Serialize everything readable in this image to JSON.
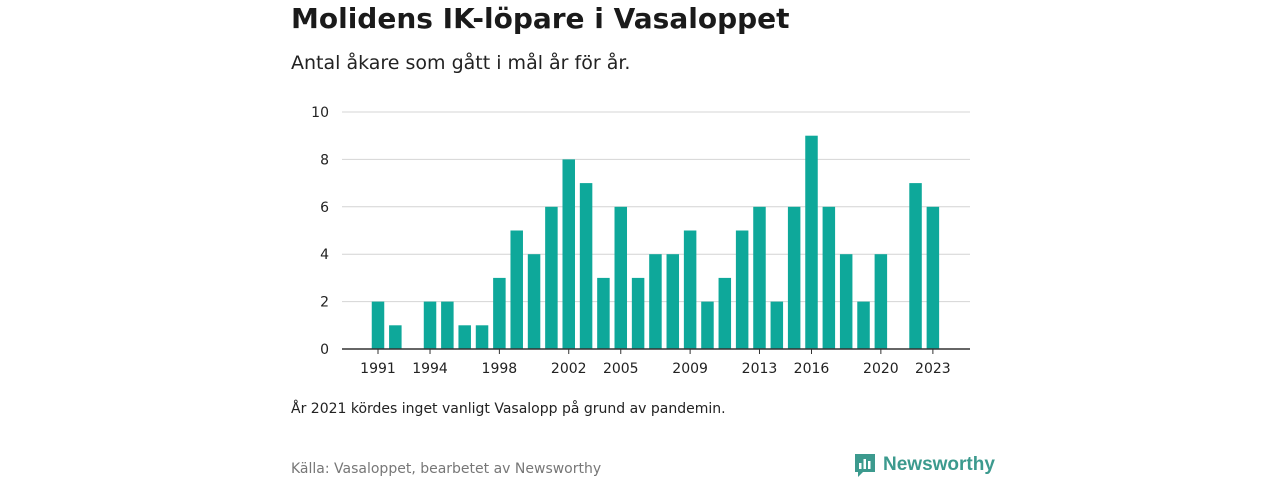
{
  "colors": {
    "bar": "#0ea89a",
    "grid": "#d4d4d4",
    "axis": "#333333",
    "brand": "#3c9a8e"
  },
  "chart_data": {
    "type": "bar",
    "title": "Molidens IK-löpare i Vasaloppet",
    "subtitle": "Antal åkare som gått i mål år för år.",
    "xlabel": "",
    "ylabel": "",
    "ylim": [
      0,
      10
    ],
    "y_ticks": [
      0,
      2,
      4,
      6,
      8,
      10
    ],
    "x_tick_labels": [
      "1991",
      "1994",
      "1998",
      "2002",
      "2005",
      "2009",
      "2013",
      "2016",
      "2020",
      "2023"
    ],
    "grid": true,
    "categories": [
      1991,
      1992,
      1993,
      1994,
      1995,
      1996,
      1997,
      1998,
      1999,
      2000,
      2001,
      2002,
      2003,
      2004,
      2005,
      2006,
      2007,
      2008,
      2009,
      2010,
      2011,
      2012,
      2013,
      2014,
      2015,
      2016,
      2017,
      2018,
      2019,
      2020,
      2021,
      2022,
      2023
    ],
    "values": [
      2,
      1,
      0,
      2,
      2,
      1,
      1,
      3,
      5,
      4,
      6,
      8,
      7,
      3,
      6,
      3,
      4,
      4,
      5,
      2,
      3,
      5,
      6,
      2,
      6,
      9,
      6,
      4,
      2,
      4,
      0,
      7,
      6
    ]
  },
  "footer": {
    "note": "År 2021 kördes inget vanligt Vasalopp på grund av pandemin.",
    "source": "Källa: Vasaloppet, bearbetet av Newsworthy"
  },
  "logo": {
    "text": "Newsworthy",
    "icon": "bar-chart-icon"
  }
}
